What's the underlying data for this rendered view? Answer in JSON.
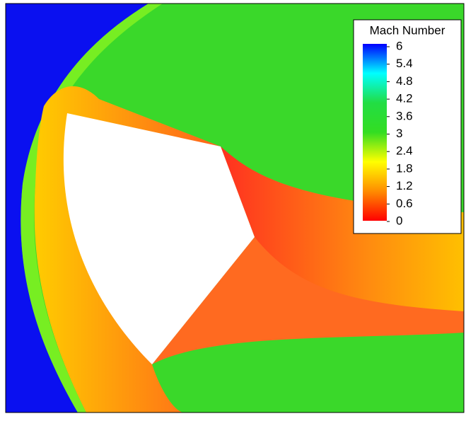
{
  "chart_data": {
    "type": "contour",
    "colorbar": {
      "title": "Mach Number",
      "lim": [
        0,
        6
      ],
      "ticks": [
        6,
        5.4,
        4.8,
        4.2,
        3.6,
        3,
        2.4,
        1.8,
        1.2,
        0.6,
        0
      ],
      "colors": [
        "#ff0000",
        "#ff8c00",
        "#ffff00",
        "#33dd22",
        "#22dd44",
        "#00ffff",
        "#0000ff"
      ]
    }
  }
}
